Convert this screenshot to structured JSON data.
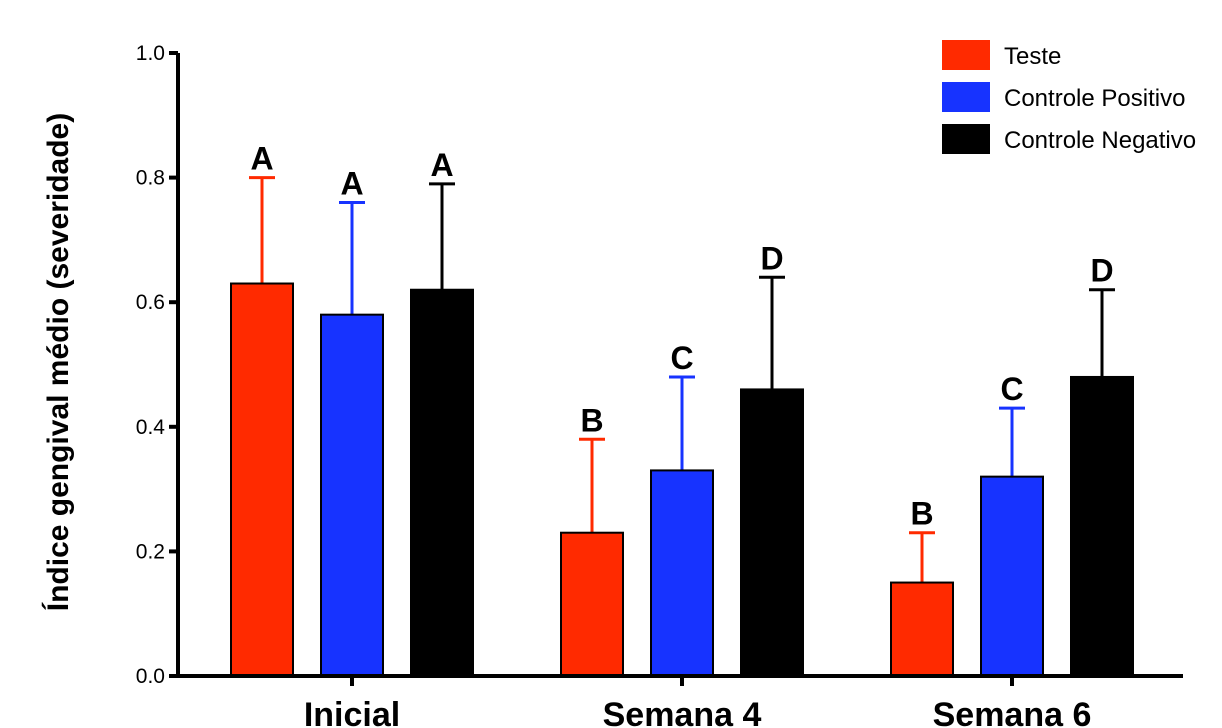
{
  "chart_data": {
    "type": "bar",
    "ylabel": "Índice gengival médio (severidade)",
    "xlabel": "",
    "ylim": [
      0,
      1.0
    ],
    "yticks": [
      "0.0",
      "0.2",
      "0.4",
      "0.6",
      "0.8",
      "1.0"
    ],
    "categories": [
      "Inicial",
      "Semana 4",
      "Semana 6"
    ],
    "legend_position": "top-right",
    "series": [
      {
        "name": "Teste",
        "color": "#ff2a00",
        "values": [
          0.63,
          0.23,
          0.15
        ],
        "error_upper": [
          0.8,
          0.38,
          0.23
        ],
        "labels": [
          "A",
          "B",
          "B"
        ]
      },
      {
        "name": "Controle Positivo",
        "color": "#1733ff",
        "values": [
          0.58,
          0.33,
          0.32
        ],
        "error_upper": [
          0.76,
          0.48,
          0.43
        ],
        "labels": [
          "A",
          "C",
          "C"
        ]
      },
      {
        "name": "Controle Negativo",
        "color": "#000000",
        "values": [
          0.62,
          0.46,
          0.48
        ],
        "error_upper": [
          0.79,
          0.64,
          0.62
        ],
        "labels": [
          "A",
          "D",
          "D"
        ]
      }
    ]
  }
}
